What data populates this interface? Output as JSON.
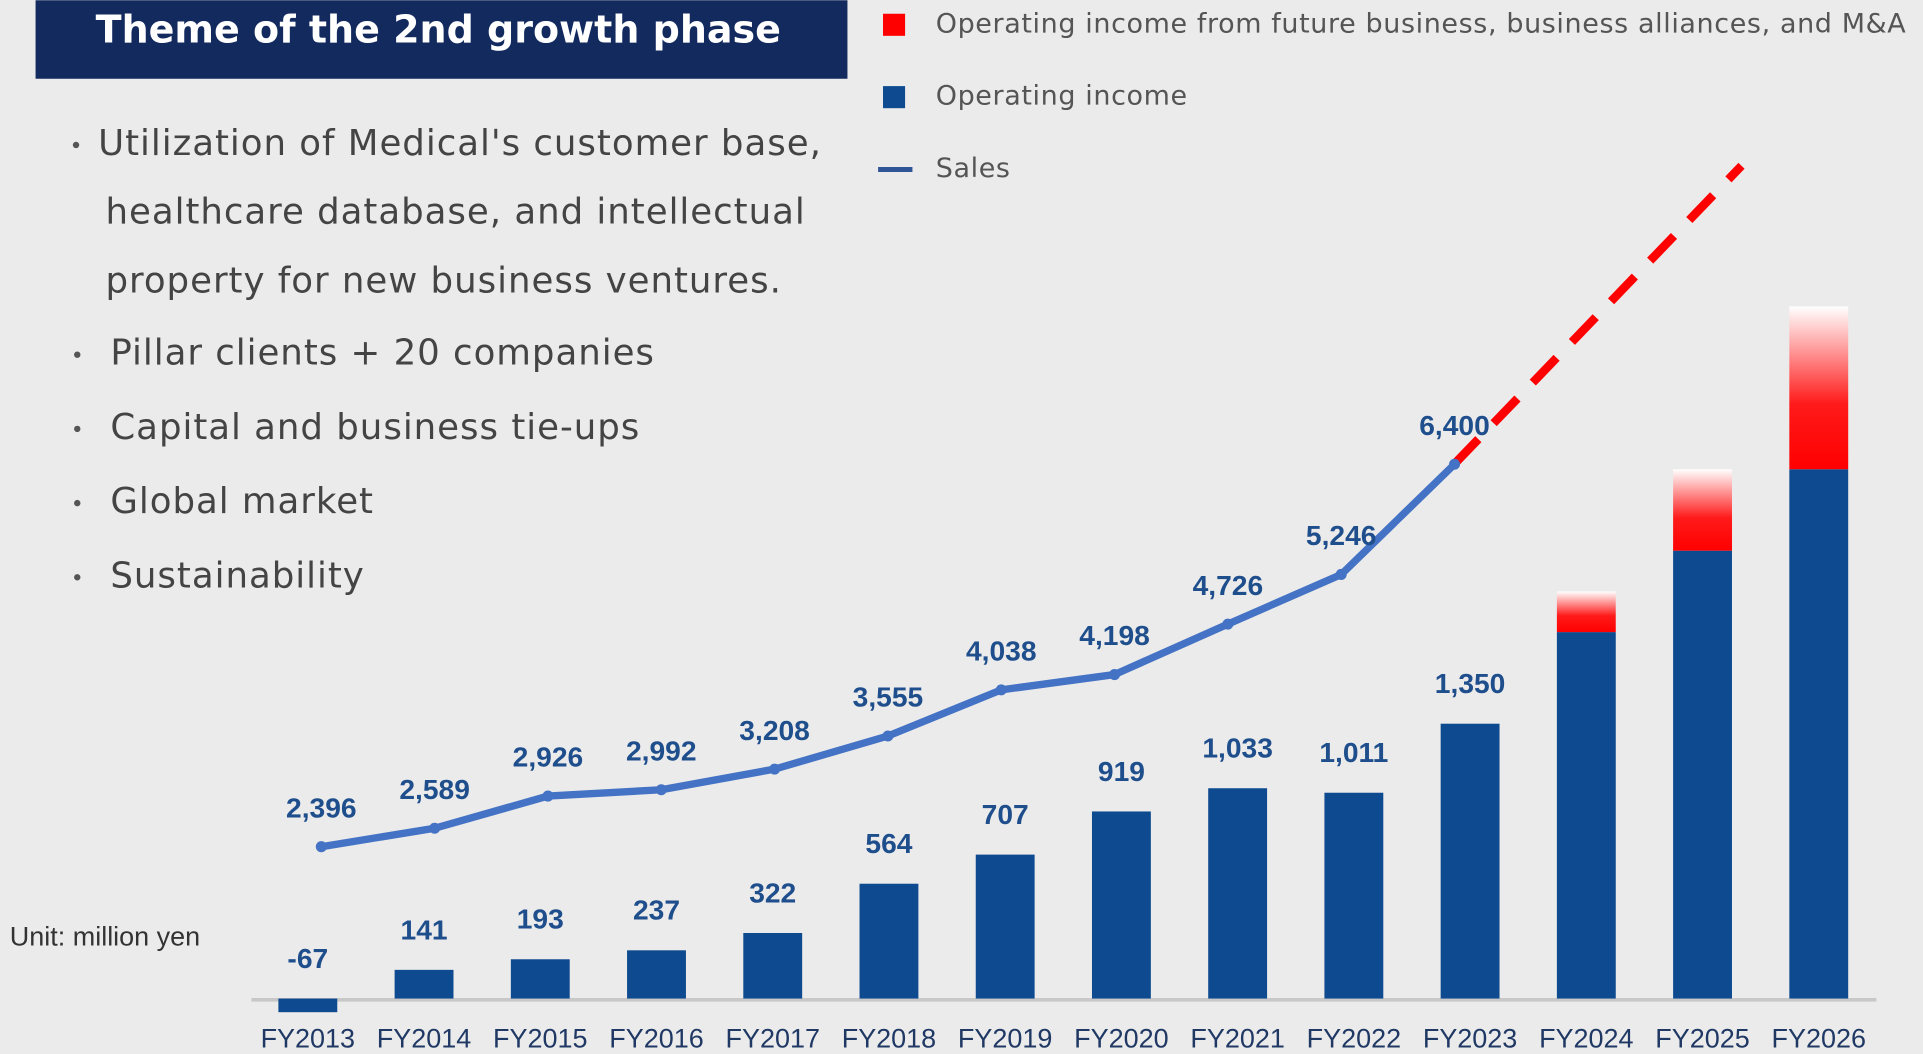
{
  "header": {
    "title": "Theme of the 2nd growth phase"
  },
  "bullets": [
    [
      "Utilization of Medical's customer base,",
      "healthcare database, and intellectual",
      "property for new business ventures."
    ],
    [
      "Pillar clients + 20 companies"
    ],
    [
      "Capital and business tie-ups"
    ],
    [
      "Global market"
    ],
    [
      "Sustainability"
    ]
  ],
  "unit": "Unit: million yen",
  "chart_data": {
    "type": "bar",
    "categories": [
      "FY2013",
      "FY2014",
      "FY2015",
      "FY2016",
      "FY2017",
      "FY2018",
      "FY2019",
      "FY2020",
      "FY2021",
      "FY2022",
      "FY2023",
      "FY2024",
      "FY2025",
      "FY2026"
    ],
    "series": [
      {
        "name": "Operating income",
        "color": "#0d4a8f",
        "type": "bar",
        "values": [
          -67,
          141,
          193,
          237,
          322,
          564,
          707,
          919,
          1033,
          1011,
          1350,
          1800,
          2200,
          2600
        ],
        "value_labels": [
          "-67",
          "141",
          "193",
          "237",
          "322",
          "564",
          "707",
          "919",
          "1,033",
          "1,011",
          "1,350",
          null,
          null,
          null
        ]
      },
      {
        "name": "Operating income from future business, business alliances, and M&A",
        "color": "#ff0000",
        "type": "bar",
        "stacked": true,
        "values": [
          null,
          null,
          null,
          null,
          null,
          null,
          null,
          null,
          null,
          null,
          null,
          200,
          400,
          800
        ]
      },
      {
        "name": "Sales",
        "color": "#4472c4",
        "type": "line",
        "axis": "y2",
        "values": [
          2396,
          2589,
          2926,
          2992,
          3208,
          3555,
          4038,
          4198,
          4726,
          5246,
          6400,
          null,
          null,
          null
        ],
        "value_labels": [
          "2,396",
          "2,589",
          "2,926",
          "2,992",
          "3,208",
          "3,555",
          "4,038",
          "4,198",
          "4,726",
          "5,246",
          "6,400",
          null,
          null,
          null
        ]
      }
    ],
    "ylim": [
      -200,
      3000
    ],
    "y2lim": [
      380,
      7200
    ],
    "grid": false
  }
}
